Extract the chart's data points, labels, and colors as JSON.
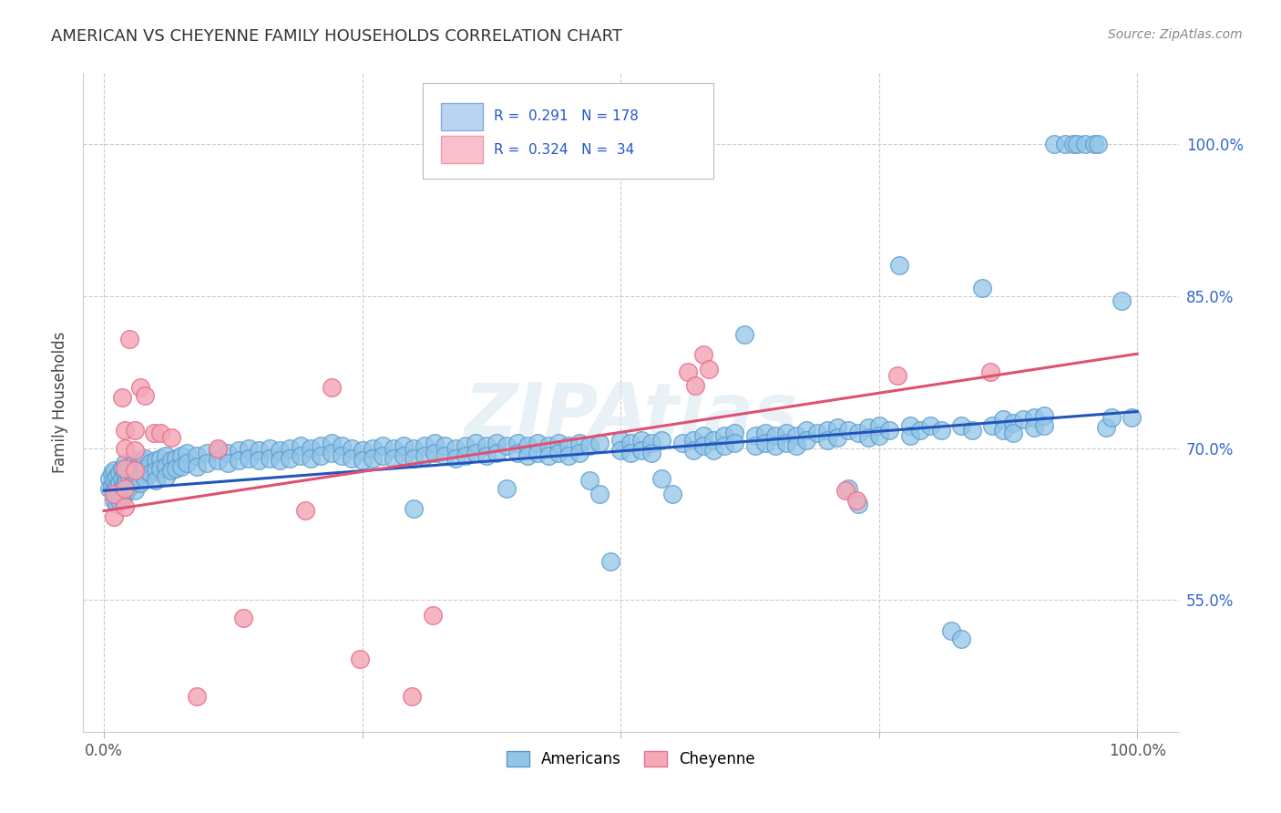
{
  "title": "AMERICAN VS CHEYENNE FAMILY HOUSEHOLDS CORRELATION CHART",
  "source": "Source: ZipAtlas.com",
  "ylabel": "Family Households",
  "ytick_labels": [
    "55.0%",
    "70.0%",
    "85.0%",
    "100.0%"
  ],
  "ytick_values": [
    0.55,
    0.7,
    0.85,
    1.0
  ],
  "legend_bottom_blue": "Americans",
  "legend_bottom_pink": "Cheyenne",
  "blue_color": "#92C5E8",
  "pink_color": "#F4A8B8",
  "blue_edge_color": "#5899CC",
  "pink_edge_color": "#E8708A",
  "blue_line_color": "#2255BB",
  "pink_line_color": "#E05070",
  "watermark": "ZIPAtlas",
  "blue_intercept": 0.658,
  "blue_slope": 0.078,
  "pink_intercept": 0.638,
  "pink_slope": 0.155,
  "xlim_min": -0.02,
  "xlim_max": 1.04,
  "ylim_min": 0.42,
  "ylim_max": 1.07,
  "blue_points": [
    [
      0.005,
      0.67
    ],
    [
      0.005,
      0.66
    ],
    [
      0.008,
      0.675
    ],
    [
      0.008,
      0.662
    ],
    [
      0.01,
      0.678
    ],
    [
      0.01,
      0.668
    ],
    [
      0.01,
      0.658
    ],
    [
      0.01,
      0.648
    ],
    [
      0.012,
      0.672
    ],
    [
      0.012,
      0.662
    ],
    [
      0.012,
      0.652
    ],
    [
      0.012,
      0.645
    ],
    [
      0.015,
      0.675
    ],
    [
      0.015,
      0.665
    ],
    [
      0.015,
      0.655
    ],
    [
      0.015,
      0.648
    ],
    [
      0.018,
      0.68
    ],
    [
      0.018,
      0.67
    ],
    [
      0.018,
      0.66
    ],
    [
      0.018,
      0.65
    ],
    [
      0.02,
      0.685
    ],
    [
      0.02,
      0.675
    ],
    [
      0.02,
      0.665
    ],
    [
      0.02,
      0.655
    ],
    [
      0.022,
      0.678
    ],
    [
      0.022,
      0.668
    ],
    [
      0.022,
      0.658
    ],
    [
      0.025,
      0.682
    ],
    [
      0.025,
      0.672
    ],
    [
      0.025,
      0.662
    ],
    [
      0.028,
      0.685
    ],
    [
      0.028,
      0.675
    ],
    [
      0.028,
      0.665
    ],
    [
      0.03,
      0.688
    ],
    [
      0.03,
      0.678
    ],
    [
      0.03,
      0.668
    ],
    [
      0.03,
      0.658
    ],
    [
      0.033,
      0.682
    ],
    [
      0.033,
      0.672
    ],
    [
      0.035,
      0.685
    ],
    [
      0.035,
      0.675
    ],
    [
      0.035,
      0.665
    ],
    [
      0.038,
      0.688
    ],
    [
      0.038,
      0.678
    ],
    [
      0.04,
      0.69
    ],
    [
      0.04,
      0.68
    ],
    [
      0.04,
      0.67
    ],
    [
      0.045,
      0.685
    ],
    [
      0.045,
      0.675
    ],
    [
      0.05,
      0.688
    ],
    [
      0.05,
      0.678
    ],
    [
      0.05,
      0.668
    ],
    [
      0.055,
      0.69
    ],
    [
      0.055,
      0.68
    ],
    [
      0.06,
      0.692
    ],
    [
      0.06,
      0.682
    ],
    [
      0.06,
      0.672
    ],
    [
      0.065,
      0.688
    ],
    [
      0.065,
      0.678
    ],
    [
      0.07,
      0.69
    ],
    [
      0.07,
      0.68
    ],
    [
      0.075,
      0.692
    ],
    [
      0.075,
      0.682
    ],
    [
      0.08,
      0.695
    ],
    [
      0.08,
      0.685
    ],
    [
      0.09,
      0.692
    ],
    [
      0.09,
      0.682
    ],
    [
      0.1,
      0.695
    ],
    [
      0.1,
      0.685
    ],
    [
      0.11,
      0.698
    ],
    [
      0.11,
      0.688
    ],
    [
      0.12,
      0.695
    ],
    [
      0.12,
      0.685
    ],
    [
      0.13,
      0.698
    ],
    [
      0.13,
      0.688
    ],
    [
      0.14,
      0.7
    ],
    [
      0.14,
      0.69
    ],
    [
      0.15,
      0.698
    ],
    [
      0.15,
      0.688
    ],
    [
      0.16,
      0.7
    ],
    [
      0.16,
      0.69
    ],
    [
      0.17,
      0.698
    ],
    [
      0.17,
      0.688
    ],
    [
      0.18,
      0.7
    ],
    [
      0.18,
      0.69
    ],
    [
      0.19,
      0.702
    ],
    [
      0.19,
      0.692
    ],
    [
      0.2,
      0.7
    ],
    [
      0.2,
      0.69
    ],
    [
      0.21,
      0.702
    ],
    [
      0.21,
      0.692
    ],
    [
      0.22,
      0.705
    ],
    [
      0.22,
      0.695
    ],
    [
      0.23,
      0.702
    ],
    [
      0.23,
      0.692
    ],
    [
      0.24,
      0.7
    ],
    [
      0.24,
      0.69
    ],
    [
      0.25,
      0.698
    ],
    [
      0.25,
      0.688
    ],
    [
      0.26,
      0.7
    ],
    [
      0.26,
      0.69
    ],
    [
      0.27,
      0.702
    ],
    [
      0.27,
      0.692
    ],
    [
      0.28,
      0.7
    ],
    [
      0.28,
      0.69
    ],
    [
      0.29,
      0.702
    ],
    [
      0.29,
      0.692
    ],
    [
      0.3,
      0.7
    ],
    [
      0.3,
      0.69
    ],
    [
      0.3,
      0.64
    ],
    [
      0.31,
      0.702
    ],
    [
      0.31,
      0.692
    ],
    [
      0.32,
      0.705
    ],
    [
      0.32,
      0.695
    ],
    [
      0.33,
      0.702
    ],
    [
      0.33,
      0.692
    ],
    [
      0.34,
      0.7
    ],
    [
      0.34,
      0.69
    ],
    [
      0.35,
      0.702
    ],
    [
      0.35,
      0.692
    ],
    [
      0.36,
      0.705
    ],
    [
      0.36,
      0.695
    ],
    [
      0.37,
      0.702
    ],
    [
      0.37,
      0.692
    ],
    [
      0.38,
      0.705
    ],
    [
      0.38,
      0.695
    ],
    [
      0.39,
      0.702
    ],
    [
      0.39,
      0.66
    ],
    [
      0.4,
      0.705
    ],
    [
      0.4,
      0.695
    ],
    [
      0.41,
      0.702
    ],
    [
      0.41,
      0.692
    ],
    [
      0.42,
      0.705
    ],
    [
      0.42,
      0.695
    ],
    [
      0.43,
      0.702
    ],
    [
      0.43,
      0.692
    ],
    [
      0.44,
      0.705
    ],
    [
      0.44,
      0.695
    ],
    [
      0.45,
      0.702
    ],
    [
      0.45,
      0.692
    ],
    [
      0.46,
      0.705
    ],
    [
      0.46,
      0.695
    ],
    [
      0.47,
      0.702
    ],
    [
      0.47,
      0.668
    ],
    [
      0.48,
      0.705
    ],
    [
      0.48,
      0.655
    ],
    [
      0.49,
      0.588
    ],
    [
      0.5,
      0.708
    ],
    [
      0.5,
      0.698
    ],
    [
      0.51,
      0.705
    ],
    [
      0.51,
      0.695
    ],
    [
      0.52,
      0.708
    ],
    [
      0.52,
      0.698
    ],
    [
      0.53,
      0.705
    ],
    [
      0.53,
      0.695
    ],
    [
      0.54,
      0.708
    ],
    [
      0.54,
      0.67
    ],
    [
      0.55,
      0.655
    ],
    [
      0.56,
      0.705
    ],
    [
      0.57,
      0.708
    ],
    [
      0.57,
      0.698
    ],
    [
      0.58,
      0.712
    ],
    [
      0.58,
      0.702
    ],
    [
      0.59,
      0.708
    ],
    [
      0.59,
      0.698
    ],
    [
      0.6,
      0.712
    ],
    [
      0.6,
      0.702
    ],
    [
      0.61,
      0.715
    ],
    [
      0.61,
      0.705
    ],
    [
      0.62,
      0.812
    ],
    [
      0.63,
      0.712
    ],
    [
      0.63,
      0.702
    ],
    [
      0.64,
      0.715
    ],
    [
      0.64,
      0.705
    ],
    [
      0.65,
      0.712
    ],
    [
      0.65,
      0.702
    ],
    [
      0.66,
      0.715
    ],
    [
      0.66,
      0.705
    ],
    [
      0.67,
      0.712
    ],
    [
      0.67,
      0.702
    ],
    [
      0.68,
      0.718
    ],
    [
      0.68,
      0.708
    ],
    [
      0.69,
      0.715
    ],
    [
      0.7,
      0.718
    ],
    [
      0.7,
      0.708
    ],
    [
      0.71,
      0.72
    ],
    [
      0.71,
      0.71
    ],
    [
      0.72,
      0.718
    ],
    [
      0.72,
      0.66
    ],
    [
      0.73,
      0.715
    ],
    [
      0.73,
      0.645
    ],
    [
      0.74,
      0.72
    ],
    [
      0.74,
      0.71
    ],
    [
      0.75,
      0.722
    ],
    [
      0.75,
      0.712
    ],
    [
      0.76,
      0.718
    ],
    [
      0.77,
      0.88
    ],
    [
      0.78,
      0.722
    ],
    [
      0.78,
      0.712
    ],
    [
      0.79,
      0.718
    ],
    [
      0.8,
      0.722
    ],
    [
      0.81,
      0.718
    ],
    [
      0.82,
      0.52
    ],
    [
      0.83,
      0.722
    ],
    [
      0.83,
      0.512
    ],
    [
      0.84,
      0.718
    ],
    [
      0.85,
      0.858
    ],
    [
      0.86,
      0.722
    ],
    [
      0.87,
      0.728
    ],
    [
      0.87,
      0.718
    ],
    [
      0.88,
      0.725
    ],
    [
      0.88,
      0.715
    ],
    [
      0.89,
      0.728
    ],
    [
      0.9,
      0.73
    ],
    [
      0.9,
      0.72
    ],
    [
      0.91,
      0.732
    ],
    [
      0.91,
      0.722
    ],
    [
      0.92,
      1.0
    ],
    [
      0.93,
      1.0
    ],
    [
      0.938,
      1.0
    ],
    [
      0.942,
      1.0
    ],
    [
      0.95,
      1.0
    ],
    [
      0.958,
      1.0
    ],
    [
      0.962,
      1.0
    ],
    [
      0.97,
      0.72
    ],
    [
      0.975,
      0.73
    ],
    [
      0.985,
      0.845
    ],
    [
      0.995,
      0.73
    ]
  ],
  "pink_points": [
    [
      0.01,
      0.655
    ],
    [
      0.01,
      0.632
    ],
    [
      0.018,
      0.75
    ],
    [
      0.02,
      0.718
    ],
    [
      0.02,
      0.7
    ],
    [
      0.02,
      0.68
    ],
    [
      0.02,
      0.66
    ],
    [
      0.02,
      0.642
    ],
    [
      0.025,
      0.808
    ],
    [
      0.03,
      0.718
    ],
    [
      0.03,
      0.698
    ],
    [
      0.03,
      0.678
    ],
    [
      0.035,
      0.76
    ],
    [
      0.04,
      0.752
    ],
    [
      0.048,
      0.715
    ],
    [
      0.055,
      0.715
    ],
    [
      0.065,
      0.71
    ],
    [
      0.09,
      0.455
    ],
    [
      0.11,
      0.7
    ],
    [
      0.135,
      0.532
    ],
    [
      0.195,
      0.638
    ],
    [
      0.22,
      0.76
    ],
    [
      0.248,
      0.492
    ],
    [
      0.298,
      0.455
    ],
    [
      0.318,
      0.535
    ],
    [
      0.565,
      0.775
    ],
    [
      0.572,
      0.762
    ],
    [
      0.58,
      0.792
    ],
    [
      0.585,
      0.778
    ],
    [
      0.718,
      0.658
    ],
    [
      0.728,
      0.648
    ],
    [
      0.768,
      0.772
    ],
    [
      0.858,
      0.775
    ]
  ]
}
